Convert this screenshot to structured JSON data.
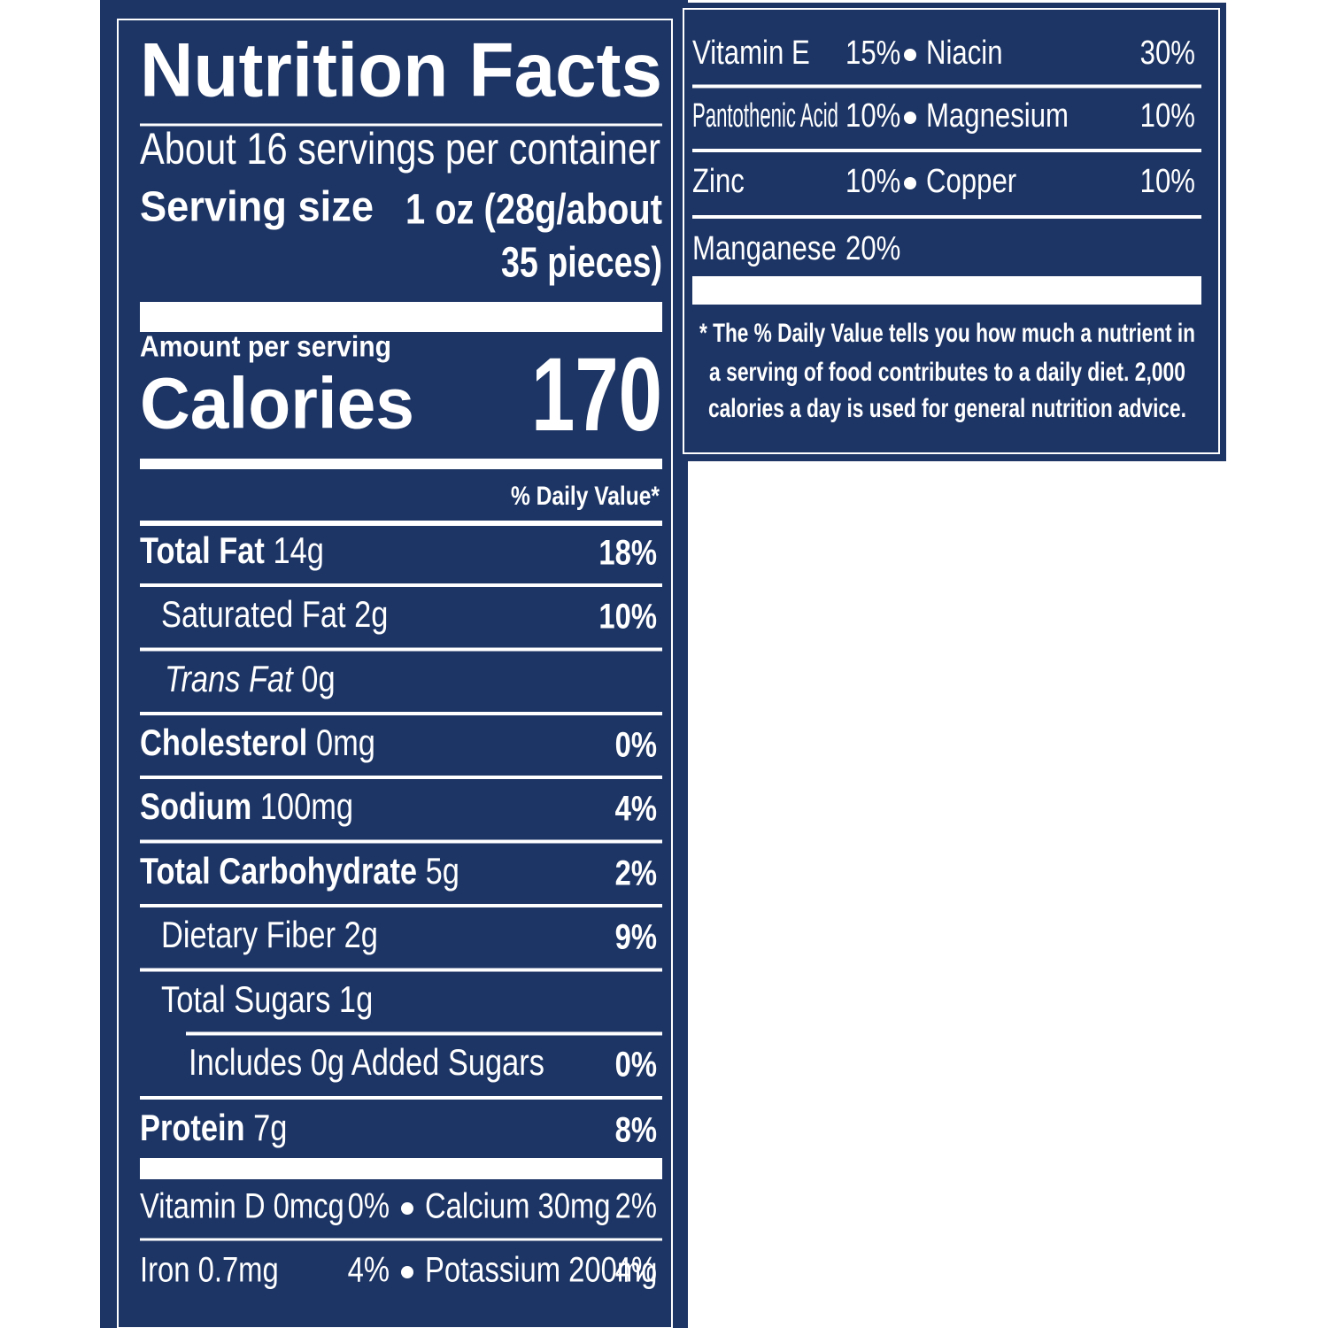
{
  "label": {
    "title": "Nutrition Facts",
    "servings": "About 16 servings per container",
    "serving_size_label": "Serving size",
    "serving_size_value": [
      "1 oz (28g/about",
      "35 pieces)"
    ],
    "amount_per_serving": "Amount per serving",
    "calories_label": "Calories",
    "calories": 170,
    "daily_value_header": "% Daily Value*",
    "nutrients": [
      {
        "name": "Total Fat",
        "amount": "14g",
        "dv": "18%"
      },
      {
        "name": "Saturated Fat",
        "amount": "2g",
        "dv": "10%"
      },
      {
        "name": "Trans Fat",
        "amount": "0g"
      },
      {
        "name": "Cholesterol",
        "amount": "0mg",
        "dv": "0%"
      },
      {
        "name": "Sodium",
        "amount": "100mg",
        "dv": "4%"
      },
      {
        "name": "Total Carbohydrate",
        "amount": "5g",
        "dv": "2%"
      },
      {
        "name": "Dietary Fiber",
        "amount": "2g",
        "dv": "9%"
      },
      {
        "name": "Total Sugars",
        "amount": "1g"
      },
      {
        "name": "Includes 0g Added Sugars",
        "dv": "0%"
      },
      {
        "name": "Protein",
        "amount": "7g",
        "dv": "8%"
      }
    ],
    "micros": [
      [
        "Vitamin D 0mcg",
        "0%",
        "Calcium 30mg",
        "2%"
      ],
      [
        "Iron 0.7mg",
        "4%",
        "Potassium 200mg",
        "4%"
      ]
    ]
  },
  "continued": {
    "rows": [
      [
        "Vitamin E",
        "15%",
        "Niacin",
        "30%"
      ],
      [
        "Pantothenic Acid",
        "10%",
        "Magnesium",
        "10%"
      ],
      [
        "Zinc",
        "10%",
        "Copper",
        "10%"
      ],
      [
        "Manganese",
        "20%"
      ]
    ],
    "footnote": [
      "* The % Daily Value tells you how much a nutrient in",
      "a serving of food contributes to a daily diet. 2,000",
      "calories a day is used for general nutrition advice."
    ]
  }
}
